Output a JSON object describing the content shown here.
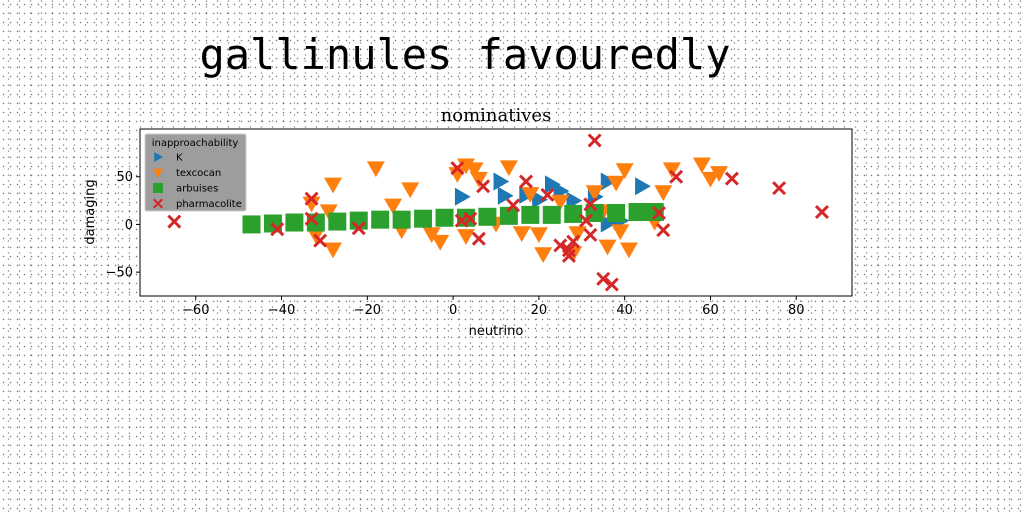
{
  "figure": {
    "suptitle": "gallinules favouredly"
  },
  "chart_data": {
    "type": "scatter",
    "title": "nominatives",
    "xlabel": "neutrino",
    "ylabel": "damaging",
    "xlim": [
      -73,
      93
    ],
    "ylim": [
      -75,
      100
    ],
    "xticks": [
      -60,
      -40,
      -20,
      0,
      20,
      40,
      60,
      80
    ],
    "yticks": [
      -50,
      0,
      50
    ],
    "grid": false,
    "legend": {
      "title": "inapproachability",
      "placement": "top-left"
    },
    "series": [
      {
        "name": "K",
        "marker": "triangle-right",
        "color": "#1f77b4",
        "points": [
          [
            2,
            29
          ],
          [
            11,
            45
          ],
          [
            17,
            31
          ],
          [
            23,
            42
          ],
          [
            28,
            25
          ],
          [
            33,
            29
          ],
          [
            36,
            45
          ],
          [
            44,
            40
          ],
          [
            12,
            30
          ],
          [
            20,
            26
          ],
          [
            36,
            1
          ],
          [
            39,
            4
          ],
          [
            25,
            35
          ]
        ]
      },
      {
        "name": "texcocan",
        "marker": "triangle-down",
        "color": "#ff7f0e",
        "points": [
          [
            -33,
            22
          ],
          [
            -28,
            42
          ],
          [
            -18,
            59
          ],
          [
            -14,
            20
          ],
          [
            -10,
            37
          ],
          [
            -5,
            -10
          ],
          [
            -3,
            -18
          ],
          [
            1,
            53
          ],
          [
            3,
            62
          ],
          [
            5,
            58
          ],
          [
            6,
            48
          ],
          [
            3,
            -12
          ],
          [
            10,
            1
          ],
          [
            13,
            60
          ],
          [
            16,
            -9
          ],
          [
            18,
            32
          ],
          [
            20,
            -10
          ],
          [
            21,
            -31
          ],
          [
            25,
            24
          ],
          [
            28,
            -30
          ],
          [
            29,
            -9
          ],
          [
            33,
            34
          ],
          [
            35,
            14
          ],
          [
            36,
            -23
          ],
          [
            38,
            44
          ],
          [
            39,
            -7
          ],
          [
            40,
            57
          ],
          [
            41,
            -26
          ],
          [
            49,
            34
          ],
          [
            51,
            58
          ],
          [
            58,
            63
          ],
          [
            60,
            48
          ],
          [
            62,
            54
          ],
          [
            47,
            3
          ],
          [
            -32,
            -11
          ],
          [
            -29,
            14
          ],
          [
            -28,
            -26
          ],
          [
            -12,
            -6
          ]
        ]
      },
      {
        "name": "arbuises",
        "marker": "square",
        "color": "#2ca02c",
        "points": [
          [
            -47,
            0
          ],
          [
            -42,
            1
          ],
          [
            -37,
            2
          ],
          [
            -32,
            2
          ],
          [
            -27,
            3
          ],
          [
            -22,
            4
          ],
          [
            -17,
            5
          ],
          [
            -12,
            5
          ],
          [
            -7,
            6
          ],
          [
            -2,
            7
          ],
          [
            3,
            7
          ],
          [
            8,
            8
          ],
          [
            13,
            9
          ],
          [
            18,
            10
          ],
          [
            23,
            10
          ],
          [
            28,
            11
          ],
          [
            33,
            12
          ],
          [
            38,
            12
          ],
          [
            43,
            13
          ],
          [
            47,
            13
          ]
        ]
      },
      {
        "name": "pharmacolite",
        "marker": "x",
        "color": "#d62728",
        "points": [
          [
            -65,
            3
          ],
          [
            -41,
            -5
          ],
          [
            -33,
            27
          ],
          [
            -33,
            6
          ],
          [
            -31,
            -17
          ],
          [
            -22,
            -4
          ],
          [
            1,
            59
          ],
          [
            2,
            4
          ],
          [
            4,
            6
          ],
          [
            6,
            -15
          ],
          [
            7,
            40
          ],
          [
            14,
            20
          ],
          [
            17,
            45
          ],
          [
            22,
            31
          ],
          [
            25,
            -22
          ],
          [
            27,
            -33
          ],
          [
            27,
            -27
          ],
          [
            28,
            -18
          ],
          [
            31,
            4
          ],
          [
            32,
            -11
          ],
          [
            32,
            21
          ],
          [
            33,
            88
          ],
          [
            35,
            -57
          ],
          [
            37,
            -63
          ],
          [
            48,
            12
          ],
          [
            49,
            -6
          ],
          [
            52,
            50
          ],
          [
            65,
            48
          ],
          [
            76,
            38
          ],
          [
            86,
            13
          ]
        ]
      }
    ]
  }
}
